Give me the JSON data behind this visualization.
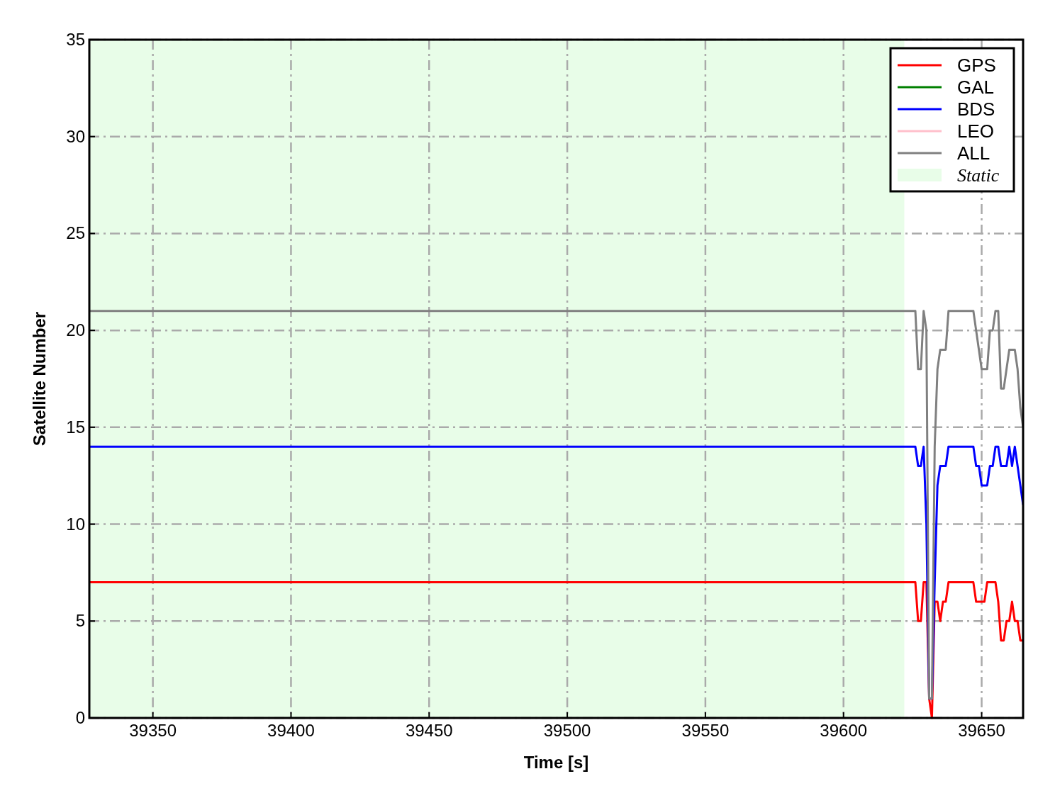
{
  "chart_data": {
    "type": "line",
    "xlabel": "Time [s]",
    "ylabel": "Satellite Number",
    "xlim": [
      39327,
      39665
    ],
    "xticks": [
      39350,
      39400,
      39450,
      39500,
      39550,
      39600,
      39650
    ],
    "ylim": [
      0,
      35
    ],
    "yticks": [
      0,
      5,
      10,
      15,
      20,
      25,
      30,
      35
    ],
    "grid": true,
    "legend": "top right",
    "line_style": "solid",
    "x": [
      39327,
      39626,
      39627,
      39628,
      39629,
      39630,
      39631,
      39632,
      39633,
      39634,
      39635,
      39636,
      39637,
      39638,
      39639,
      39640,
      39641,
      39642,
      39643,
      39644,
      39645,
      39646,
      39647,
      39648,
      39649,
      39650,
      39651,
      39652,
      39653,
      39654,
      39655,
      39656,
      39657,
      39658,
      39659,
      39660,
      39661,
      39662,
      39663,
      39664,
      39665
    ],
    "series": [
      {
        "name": "GPS",
        "color": "#ff0000",
        "values": [
          7,
          7,
          5,
          5,
          7,
          7,
          1,
          0,
          6,
          6,
          5,
          6,
          6,
          7,
          7,
          7,
          7,
          7,
          7,
          7,
          7,
          7,
          7,
          6,
          6,
          6,
          6,
          7,
          7,
          7,
          7,
          6,
          4,
          4,
          5,
          5,
          6,
          5,
          5,
          4,
          4
        ]
      },
      {
        "name": "GAL",
        "color": "#008000",
        "values": [
          null,
          null,
          null,
          null,
          null,
          null,
          null,
          null,
          null,
          null,
          null,
          null,
          null,
          null,
          null,
          null,
          null,
          null,
          null,
          null,
          null,
          null,
          null,
          null,
          null,
          null,
          null,
          null,
          null,
          null,
          null,
          null,
          null,
          null,
          null,
          null,
          null,
          null,
          null,
          null,
          null
        ]
      },
      {
        "name": "BDS",
        "color": "#0000ff",
        "values": [
          14,
          14,
          13,
          13,
          14,
          10,
          1,
          1,
          7,
          12,
          13,
          13,
          13,
          14,
          14,
          14,
          14,
          14,
          14,
          14,
          14,
          14,
          14,
          13,
          13,
          12,
          12,
          12,
          13,
          13,
          14,
          14,
          13,
          13,
          13,
          14,
          13,
          14,
          13,
          12,
          11
        ]
      },
      {
        "name": "LEO",
        "color": "#ffc0cb",
        "values": [
          null,
          null,
          null,
          null,
          null,
          null,
          null,
          null,
          null,
          null,
          null,
          null,
          null,
          null,
          null,
          null,
          null,
          null,
          null,
          null,
          null,
          null,
          null,
          null,
          null,
          null,
          null,
          null,
          null,
          null,
          null,
          null,
          null,
          null,
          null,
          null,
          null,
          null,
          null,
          null,
          null
        ]
      },
      {
        "name": "ALL",
        "color": "#808080",
        "values": [
          21,
          21,
          18,
          18,
          21,
          20,
          1,
          1,
          14,
          18,
          19,
          19,
          19,
          21,
          21,
          21,
          21,
          21,
          21,
          21,
          21,
          21,
          21,
          20,
          19,
          18,
          18,
          18,
          20,
          20,
          21,
          21,
          17,
          17,
          18,
          19,
          19,
          19,
          18,
          16,
          15
        ]
      }
    ],
    "bands": [
      {
        "axis": "x",
        "from": 39327,
        "to": 39622,
        "label": "Static",
        "color": "#e8fde8"
      }
    ]
  }
}
